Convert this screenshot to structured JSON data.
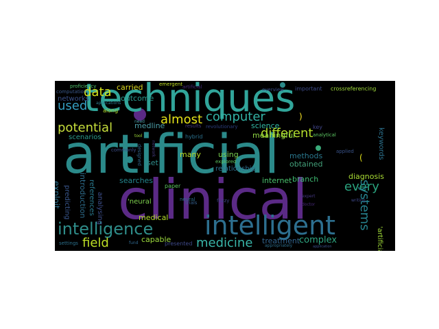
{
  "wordcloud": {
    "background": "#000000",
    "words": [
      {
        "id": "techniques",
        "text": "techniques",
        "color": "#31a59a"
      },
      {
        "id": "artificial",
        "text": "artificial",
        "color": "#2b8a8a"
      },
      {
        "id": "clinical",
        "text": "clinical",
        "color": "#5b2a86"
      },
      {
        "id": "intelligent",
        "text": "intelligent",
        "color": "#2d6f8f"
      },
      {
        "id": "intelligence",
        "text": "intelligence",
        "color": "#2f8d8a"
      },
      {
        "id": "data",
        "text": "data",
        "color": "#d5e21a"
      },
      {
        "id": "used",
        "text": "used",
        "color": "#35a0c4"
      },
      {
        "id": "potential",
        "text": "potential",
        "color": "#c7df3c"
      },
      {
        "id": "almost",
        "text": "almost",
        "color": "#e6e419"
      },
      {
        "id": "computer",
        "text": "computer",
        "color": "#33b3a6"
      },
      {
        "id": "different",
        "text": "different",
        "color": "#b4dd2c"
      },
      {
        "id": "every",
        "text": "every",
        "color": "#2aa47f"
      },
      {
        "id": "field",
        "text": "field",
        "color": "#bddf26"
      },
      {
        "id": "medicine",
        "text": "medicine",
        "color": "#39b5a9"
      },
      {
        "id": "systems",
        "text": "systems",
        "color": "#26828e"
      },
      {
        "id": "complex",
        "text": "complex",
        "color": "#2ea580"
      },
      {
        "id": "carried",
        "text": "carried",
        "color": "#ddd91f"
      },
      {
        "id": "outcome",
        "text": "outcome",
        "color": "#2a9b8f"
      },
      {
        "id": "networks",
        "text": "networks",
        "color": "#3b528b"
      },
      {
        "id": "medline",
        "text": "medline",
        "color": "#4c9ea8"
      },
      {
        "id": "science",
        "text": "science",
        "color": "#33b9a5"
      },
      {
        "id": "meaningful",
        "text": "meaningful",
        "color": "#90d743"
      },
      {
        "id": "scenarios",
        "text": "scenarios",
        "color": "#2b9b8c"
      },
      {
        "id": "set",
        "text": "set",
        "color": "#2f8e8c"
      },
      {
        "id": "many",
        "text": "many",
        "color": "#b8de29"
      },
      {
        "id": "using",
        "text": "using",
        "color": "#7ad151"
      },
      {
        "id": "methods",
        "text": "methods",
        "color": "#2a788e"
      },
      {
        "id": "obtained",
        "text": "obtained",
        "color": "#43a17a"
      },
      {
        "id": "keywords",
        "text": "keywords",
        "color": "#2c728e"
      },
      {
        "id": "diagnosis",
        "text": "diagnosis",
        "color": "#a8db34"
      },
      {
        "id": "relationship",
        "text": "relationship",
        "color": "#2e6f8e"
      },
      {
        "id": "internet",
        "text": "internet",
        "color": "#49c16d"
      },
      {
        "id": "branch",
        "text": "branch",
        "color": "#3fbc73"
      },
      {
        "id": "introduction",
        "text": "introduction",
        "color": "#2e6e8e"
      },
      {
        "id": "exploit",
        "text": "exploit",
        "color": "#2d708e"
      },
      {
        "id": "predicting",
        "text": "predicting",
        "color": "#39568c"
      },
      {
        "id": "references",
        "text": "references",
        "color": "#2a7a8e"
      },
      {
        "id": "analysing",
        "text": "analysing",
        "color": "#3d4e8a"
      },
      {
        "id": "searches",
        "text": "searches",
        "color": "#24868e"
      },
      {
        "id": "neural_q",
        "text": "'neural",
        "color": "#7fd34e"
      },
      {
        "id": "medical",
        "text": "medical",
        "color": "#b5de2b"
      },
      {
        "id": "capable",
        "text": "capable",
        "color": "#9bd93c"
      },
      {
        "id": "treatment",
        "text": "treatment",
        "color": "#32648e"
      },
      {
        "id": "artificial_q",
        "text": "'artificial",
        "color": "#a0da39"
      },
      {
        "id": "paper",
        "text": "paper",
        "color": "#5ec962"
      },
      {
        "id": "presented",
        "text": "presented",
        "color": "#3e4989"
      },
      {
        "id": "trials",
        "text": "trials",
        "color": "#355f8d"
      },
      {
        "id": "fuzzy",
        "text": "fuzzy",
        "color": "#404688"
      },
      {
        "id": "along",
        "text": "along",
        "color": "#b0dd2f"
      },
      {
        "id": "commonly",
        "text": "commonly",
        "color": "#3c4f8a"
      },
      {
        "id": "designed",
        "text": "designed",
        "color": "#31688e"
      },
      {
        "id": "hybrid",
        "text": "hybrid",
        "color": "#2c718e"
      },
      {
        "id": "explored",
        "text": "explored",
        "color": "#5ec962"
      },
      {
        "id": "results",
        "text": "results",
        "color": "#44397a"
      },
      {
        "id": "revolutionary",
        "text": "revolutionary",
        "color": "#2c3e7e"
      },
      {
        "id": "key",
        "text": "key",
        "color": "#404588"
      },
      {
        "id": "analytical",
        "text": "analytical",
        "color": "#5dc863"
      },
      {
        "id": "applied",
        "text": "applied",
        "color": "#3a548c"
      },
      {
        "id": "proficiency",
        "text": "proficiency",
        "color": "#4fc16b"
      },
      {
        "id": "computation",
        "text": "computation",
        "color": "#3b5a8c"
      },
      {
        "id": "applications",
        "text": "applications",
        "color": "#2b7c8d"
      },
      {
        "id": "emergent",
        "text": "emergent",
        "color": "#c2df23"
      },
      {
        "id": "overview",
        "text": "overview",
        "color": "#3c508b"
      },
      {
        "id": "important",
        "text": "important",
        "color": "#3d4b89"
      },
      {
        "id": "crossreferencing",
        "text": "crossreferencing",
        "color": "#9fda3a"
      },
      {
        "id": "need",
        "text": "need",
        "color": "#4c9ea8"
      },
      {
        "id": "tool",
        "text": "tool",
        "color": "#9fda3a"
      },
      {
        "id": "network",
        "text": "network",
        "color": "#44397a"
      },
      {
        "id": "neural",
        "text": "neural",
        "color": "#2d708e"
      },
      {
        "id": "settings",
        "text": "settings",
        "color": "#2c728e"
      },
      {
        "id": "fund",
        "text": "fund",
        "color": "#31688e"
      },
      {
        "id": "appropriately",
        "text": "appropriately",
        "color": "#2d6f8e"
      },
      {
        "id": "application",
        "text": "application",
        "color": "#3b528b"
      },
      {
        "id": "writing",
        "text": "writing",
        "color": "#3e4989"
      },
      {
        "id": "expert",
        "text": "expert",
        "color": "#453882"
      },
      {
        "id": "doctor",
        "text": "doctor",
        "color": "#482878"
      },
      {
        "id": "artificial_small",
        "text": "artificial",
        "color": "#472d7b"
      },
      {
        "id": "paren_open",
        "text": "(",
        "color": "#e5e419"
      },
      {
        "id": "paren_close",
        "text": ")",
        "color": "#fde725"
      }
    ],
    "dots": [
      {
        "id": "dot-purple",
        "color": "#5b2a86"
      },
      {
        "id": "dot-teal-1",
        "color": "#2a8a8a"
      },
      {
        "id": "dot-teal-2",
        "color": "#2b8a8a"
      },
      {
        "id": "dot-green",
        "color": "#3aaa7a"
      }
    ]
  }
}
